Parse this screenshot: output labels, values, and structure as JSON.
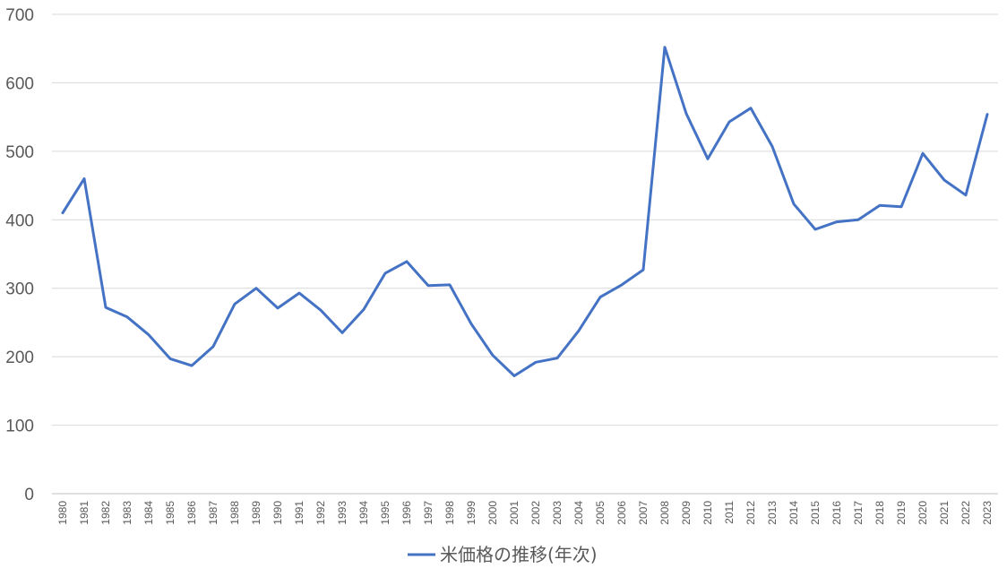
{
  "chart_data": {
    "type": "line",
    "title": "",
    "xlabel": "",
    "ylabel": "",
    "ylim": [
      0,
      700
    ],
    "yticks": [
      0,
      100,
      200,
      300,
      400,
      500,
      600,
      700
    ],
    "grid": true,
    "legend_position": "bottom",
    "x": [
      "1980",
      "1981",
      "1982",
      "1983",
      "1984",
      "1985",
      "1986",
      "1987",
      "1988",
      "1989",
      "1990",
      "1991",
      "1992",
      "1993",
      "1994",
      "1995",
      "1996",
      "1997",
      "1998",
      "1999",
      "2000",
      "2001",
      "2002",
      "2003",
      "2004",
      "2005",
      "2006",
      "2007",
      "2008",
      "2009",
      "2010",
      "2011",
      "2012",
      "2013",
      "2014",
      "2015",
      "2016",
      "2017",
      "2018",
      "2019",
      "2020",
      "2021",
      "2022",
      "2023"
    ],
    "series": [
      {
        "name": "米価格の推移(年次)",
        "color": "#4472C4",
        "values": [
          410,
          460,
          272,
          258,
          232,
          197,
          187,
          215,
          277,
          300,
          271,
          293,
          268,
          235,
          269,
          322,
          339,
          304,
          305,
          248,
          202,
          172,
          192,
          198,
          238,
          287,
          305,
          327,
          652,
          555,
          489,
          543,
          563,
          507,
          423,
          386,
          397,
          400,
          421,
          419,
          497,
          458,
          436,
          554
        ]
      }
    ]
  },
  "colors": {
    "grid": "#D9D9D9",
    "axis": "#BFBFBF",
    "text": "#595959"
  }
}
